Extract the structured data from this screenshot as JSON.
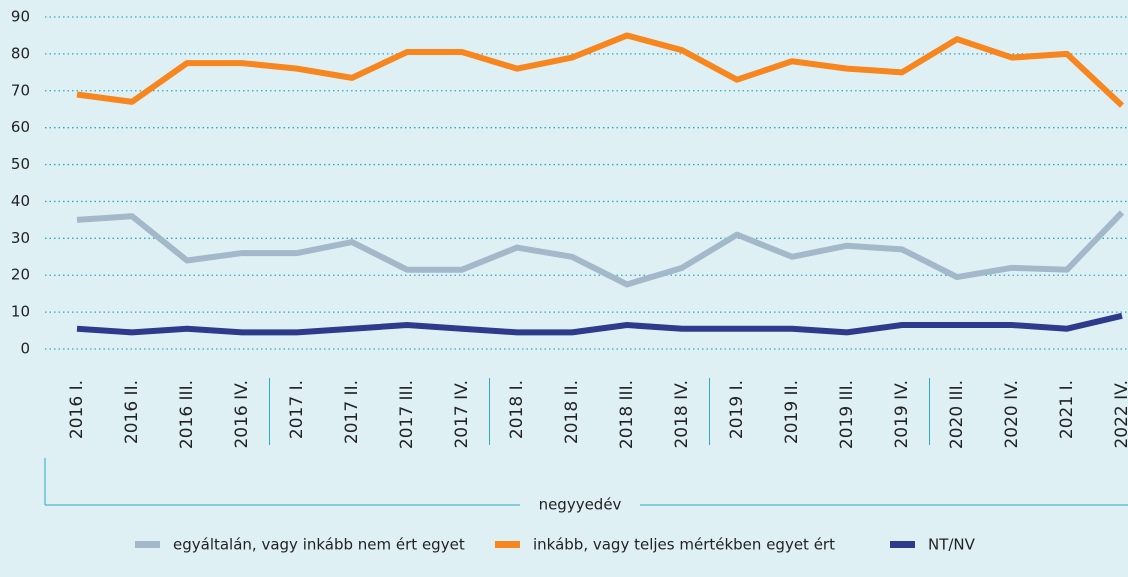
{
  "chart_data": {
    "type": "line",
    "categories": [
      "2016 I.",
      "2016 II.",
      "2016 III.",
      "2016 IV.",
      "2017 I.",
      "2017 II.",
      "2017 III.",
      "2017 IV.",
      "2018 I.",
      "2018 II.",
      "2018 III.",
      "2018 IV.",
      "2019 I.",
      "2019 II.",
      "2019 III.",
      "2019 IV.",
      "2020 III.",
      "2020 IV.",
      "2021 I.",
      "2022 IV."
    ],
    "x_label": "negyyedév",
    "series": [
      {
        "name": "egyáltalán, vagy inkább nem ért egyet",
        "color": "#a3b8c8",
        "values": [
          35,
          36,
          24,
          26,
          26,
          29,
          21.5,
          21.5,
          27.5,
          25,
          17.5,
          22,
          31,
          25,
          28,
          27,
          19.5,
          22,
          21.5,
          37
        ]
      },
      {
        "name": "inkább,  vagy teljes mértékben egyet ért",
        "color": "#f7861e",
        "values": [
          69,
          67,
          77.5,
          77.5,
          76,
          73.5,
          80.5,
          80.5,
          76,
          79,
          85,
          81,
          73,
          78,
          76,
          75,
          84,
          79,
          80,
          66
        ]
      },
      {
        "name": "NT/NV",
        "color": "#2e3a8c",
        "values": [
          5.5,
          4.5,
          5.5,
          4.5,
          4.5,
          5.5,
          6.5,
          5.5,
          4.5,
          4.5,
          6.5,
          5.5,
          5.5,
          5.5,
          4.5,
          6.5,
          6.5,
          6.5,
          5.5,
          9
        ]
      }
    ],
    "ylim": [
      0,
      90
    ],
    "yticks": [
      0,
      10,
      20,
      30,
      40,
      50,
      60,
      70,
      80,
      90
    ],
    "grid": true
  }
}
